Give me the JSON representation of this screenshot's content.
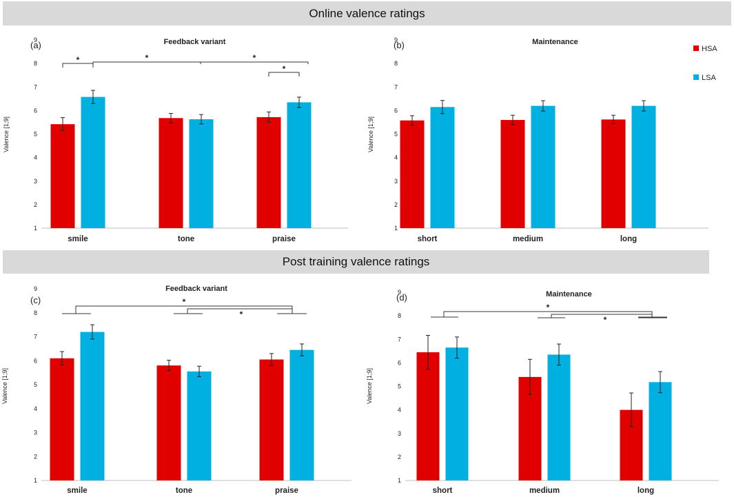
{
  "sections": {
    "online_title": "Online valence ratings",
    "post_title": "Post training valence ratings"
  },
  "colors": {
    "HSA": "#e10000",
    "LSA": "#00b0e0"
  },
  "chart_data": [
    {
      "type": "bar",
      "panel": "(a)",
      "title": "Feedback variant",
      "ylabel": "Valence [1;9]",
      "ylim": [
        1,
        9
      ],
      "yticks": [
        1,
        2,
        3,
        4,
        5,
        6,
        7,
        8,
        9
      ],
      "categories": [
        "smile",
        "tone",
        "praise"
      ],
      "series": [
        {
          "name": "HSA",
          "values": [
            5.42,
            5.68,
            5.72
          ],
          "errors": [
            0.28,
            0.2,
            0.22
          ]
        },
        {
          "name": "LSA",
          "values": [
            6.58,
            5.63,
            6.35
          ],
          "errors": [
            0.28,
            0.2,
            0.22
          ]
        }
      ],
      "significance": [
        {
          "from": "smile.HSA",
          "to": "smile.LSA",
          "label": "*"
        },
        {
          "from": "smile",
          "to": "tone",
          "label": "*"
        },
        {
          "from": "tone",
          "to": "praise",
          "label": "*"
        },
        {
          "from": "praise.HSA",
          "to": "praise.LSA",
          "label": "*"
        }
      ]
    },
    {
      "type": "bar",
      "panel": "(b)",
      "title": "Maintenance",
      "ylabel": "Valence [1;9]",
      "ylim": [
        1,
        9
      ],
      "yticks": [
        1,
        2,
        3,
        4,
        5,
        6,
        7,
        8,
        9
      ],
      "categories": [
        "short",
        "medium",
        "long"
      ],
      "legend": [
        "HSA",
        "LSA"
      ],
      "series": [
        {
          "name": "HSA",
          "values": [
            5.58,
            5.6,
            5.62
          ],
          "errors": [
            0.2,
            0.2,
            0.18
          ]
        },
        {
          "name": "LSA",
          "values": [
            6.15,
            6.2,
            6.2
          ],
          "errors": [
            0.28,
            0.22,
            0.22
          ]
        }
      ],
      "significance": []
    },
    {
      "type": "bar",
      "panel": "(c)",
      "title": "Feedback variant",
      "ylabel": "Valence [1;9]",
      "ylim": [
        1,
        9
      ],
      "yticks": [
        1,
        2,
        3,
        4,
        5,
        6,
        7,
        8,
        9
      ],
      "categories": [
        "smile",
        "tone",
        "praise"
      ],
      "series": [
        {
          "name": "HSA",
          "values": [
            6.1,
            5.8,
            6.05
          ],
          "errors": [
            0.28,
            0.22,
            0.25
          ]
        },
        {
          "name": "LSA",
          "values": [
            7.2,
            5.55,
            6.45
          ],
          "errors": [
            0.3,
            0.22,
            0.25
          ]
        }
      ],
      "significance": [
        {
          "from": "smile",
          "to": "praise",
          "label": "*"
        },
        {
          "from": "tone",
          "to": "praise",
          "label": "*"
        }
      ]
    },
    {
      "type": "bar",
      "panel": "(d)",
      "title": "Maintenance",
      "ylabel": "Valence [1;9]",
      "ylim": [
        1,
        9
      ],
      "yticks": [
        1,
        2,
        3,
        4,
        5,
        6,
        7,
        8,
        9
      ],
      "categories": [
        "short",
        "medium",
        "long"
      ],
      "series": [
        {
          "name": "HSA",
          "values": [
            6.45,
            5.4,
            4.0
          ],
          "errors": [
            0.72,
            0.75,
            0.72
          ]
        },
        {
          "name": "LSA",
          "values": [
            6.65,
            6.35,
            5.18
          ],
          "errors": [
            0.45,
            0.45,
            0.45
          ]
        }
      ],
      "significance": [
        {
          "from": "short",
          "to": "long",
          "label": "*"
        },
        {
          "from": "medium",
          "to": "long",
          "label": "*"
        }
      ]
    }
  ]
}
